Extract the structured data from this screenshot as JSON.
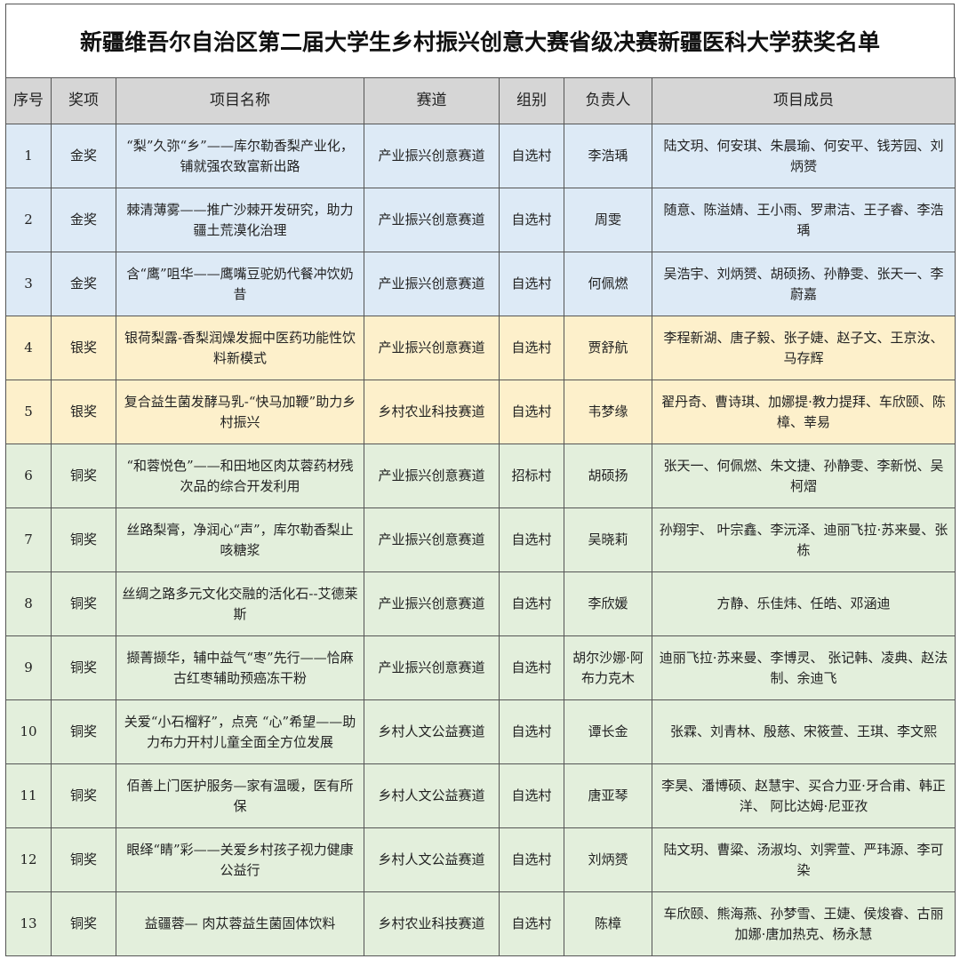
{
  "title": "新疆维吾尔自治区第二届大学生乡村振兴创意大赛省级决赛新疆医科大学获奖名单",
  "colors": {
    "header": "#d6d6d6",
    "gold": "#ddeaf6",
    "silver": "#fdf0cb",
    "bronze": "#e3efdc"
  },
  "headers": [
    "序号",
    "奖项",
    "项目名称",
    "赛道",
    "组别",
    "负责人",
    "项目成员"
  ],
  "rows": [
    {
      "no": "1",
      "award": "金奖",
      "tier": "gold",
      "project": "“梨”久弥“乡”——库尔勒香梨产业化，铺就强农致富新出路",
      "track": "产业振兴创意赛道",
      "group": "自选村",
      "leader": "李浩瑀",
      "members": "陆文玥、何安琪、朱晨瑜、何安平、钱芳园、刘炳赟"
    },
    {
      "no": "2",
      "award": "金奖",
      "tier": "gold",
      "project": "棘清薄雾——推广沙棘开发研究，助力疆土荒漠化治理",
      "track": "产业振兴创意赛道",
      "group": "自选村",
      "leader": "周雯",
      "members": "随意、陈溢婧、王小雨、罗肃洁、王子睿、李浩瑀"
    },
    {
      "no": "3",
      "award": "金奖",
      "tier": "gold",
      "project": "含“鹰”咀华——鹰嘴豆驼奶代餐冲饮奶昔",
      "track": "产业振兴创意赛道",
      "group": "自选村",
      "leader": "何佩燃",
      "members": "吴浩宇、刘炳赟、胡硕扬、孙静雯、张天一、李蔚嘉"
    },
    {
      "no": "4",
      "award": "银奖",
      "tier": "silver",
      "project": "银荷梨露-香梨润燥发掘中医药功能性饮料新模式",
      "track": "产业振兴创意赛道",
      "group": "自选村",
      "leader": "贾舒航",
      "members": "李程新湖、唐子毅、张子婕、赵子文、王京汝、马存辉"
    },
    {
      "no": "5",
      "award": "银奖",
      "tier": "silver",
      "project": "复合益生菌发酵马乳-“快马加鞭”助力乡村振兴",
      "track": "乡村农业科技赛道",
      "group": "自选村",
      "leader": "韦梦缘",
      "members": "翟丹奇、曹诗琪、加娜提·教力提拜、车欣颐、陈樟、莘易"
    },
    {
      "no": "6",
      "award": "铜奖",
      "tier": "bronze",
      "project": "“和蓉悦色”——和田地区肉苁蓉药材残次品的综合开发利用",
      "track": "产业振兴创意赛道",
      "group": "招标村",
      "leader": "胡硕扬",
      "members": "张天一、何佩燃、朱文捷、孙静雯、李新悦、吴柯熠"
    },
    {
      "no": "7",
      "award": "铜奖",
      "tier": "bronze",
      "project": "丝路梨膏，净润心“声”，库尔勒香梨止咳糖浆",
      "track": "产业振兴创意赛道",
      "group": "自选村",
      "leader": "吴晓莉",
      "members": "孙翔宇、 叶宗鑫、李沅泽、迪丽飞拉·苏来曼、张栋"
    },
    {
      "no": "8",
      "award": "铜奖",
      "tier": "bronze",
      "project": "丝绸之路多元文化交融的活化石--艾德莱斯",
      "track": "产业振兴创意赛道",
      "group": "自选村",
      "leader": "李欣媛",
      "members": "方静、乐佳炜、任皓、邓涵迪"
    },
    {
      "no": "9",
      "award": "铜奖",
      "tier": "bronze",
      "project": "撷菁撷华，辅中益气“枣”先行——恰麻古红枣辅助预癌冻干粉",
      "track": "产业振兴创意赛道",
      "group": "自选村",
      "leader": "胡尔沙娜·阿布力克木",
      "members": "迪丽飞拉·苏来曼、李博灵、 张记韩、凌典、赵法制、余迪飞"
    },
    {
      "no": "10",
      "award": "铜奖",
      "tier": "bronze",
      "project": "关爱“小石榴籽”，点亮 “心”希望——助力布力开村儿童全面全方位发展",
      "track": "乡村人文公益赛道",
      "group": "自选村",
      "leader": "谭长金",
      "members": "张霖、刘青林、殷慈、宋筱萱、王琪、李文熙"
    },
    {
      "no": "11",
      "award": "铜奖",
      "tier": "bronze",
      "project": "佰善上门医护服务—家有温暖，医有所保",
      "track": "乡村人文公益赛道",
      "group": "自选村",
      "leader": "唐亚琴",
      "members": "李昊、潘博硕、赵慧宇、买合力亚·牙合甫、韩正洋、 阿比达姆·尼亚孜"
    },
    {
      "no": "12",
      "award": "铜奖",
      "tier": "bronze",
      "project": "眼绎“睛”彩——关爱乡村孩子视力健康公益行",
      "track": "乡村人文公益赛道",
      "group": "自选村",
      "leader": "刘炳赟",
      "members": "陆文玥、曹粱、汤淑均、刘霁萱、严玮源、李可染"
    },
    {
      "no": "13",
      "award": "铜奖",
      "tier": "bronze",
      "project": "益疆蓉— 肉苁蓉益生菌固体饮料",
      "track": "乡村农业科技赛道",
      "group": "自选村",
      "leader": "陈樟",
      "members": "车欣颐、熊海燕、孙梦雪、王婕、侯焌睿、古丽加娜·唐加热克、杨永慧"
    }
  ]
}
